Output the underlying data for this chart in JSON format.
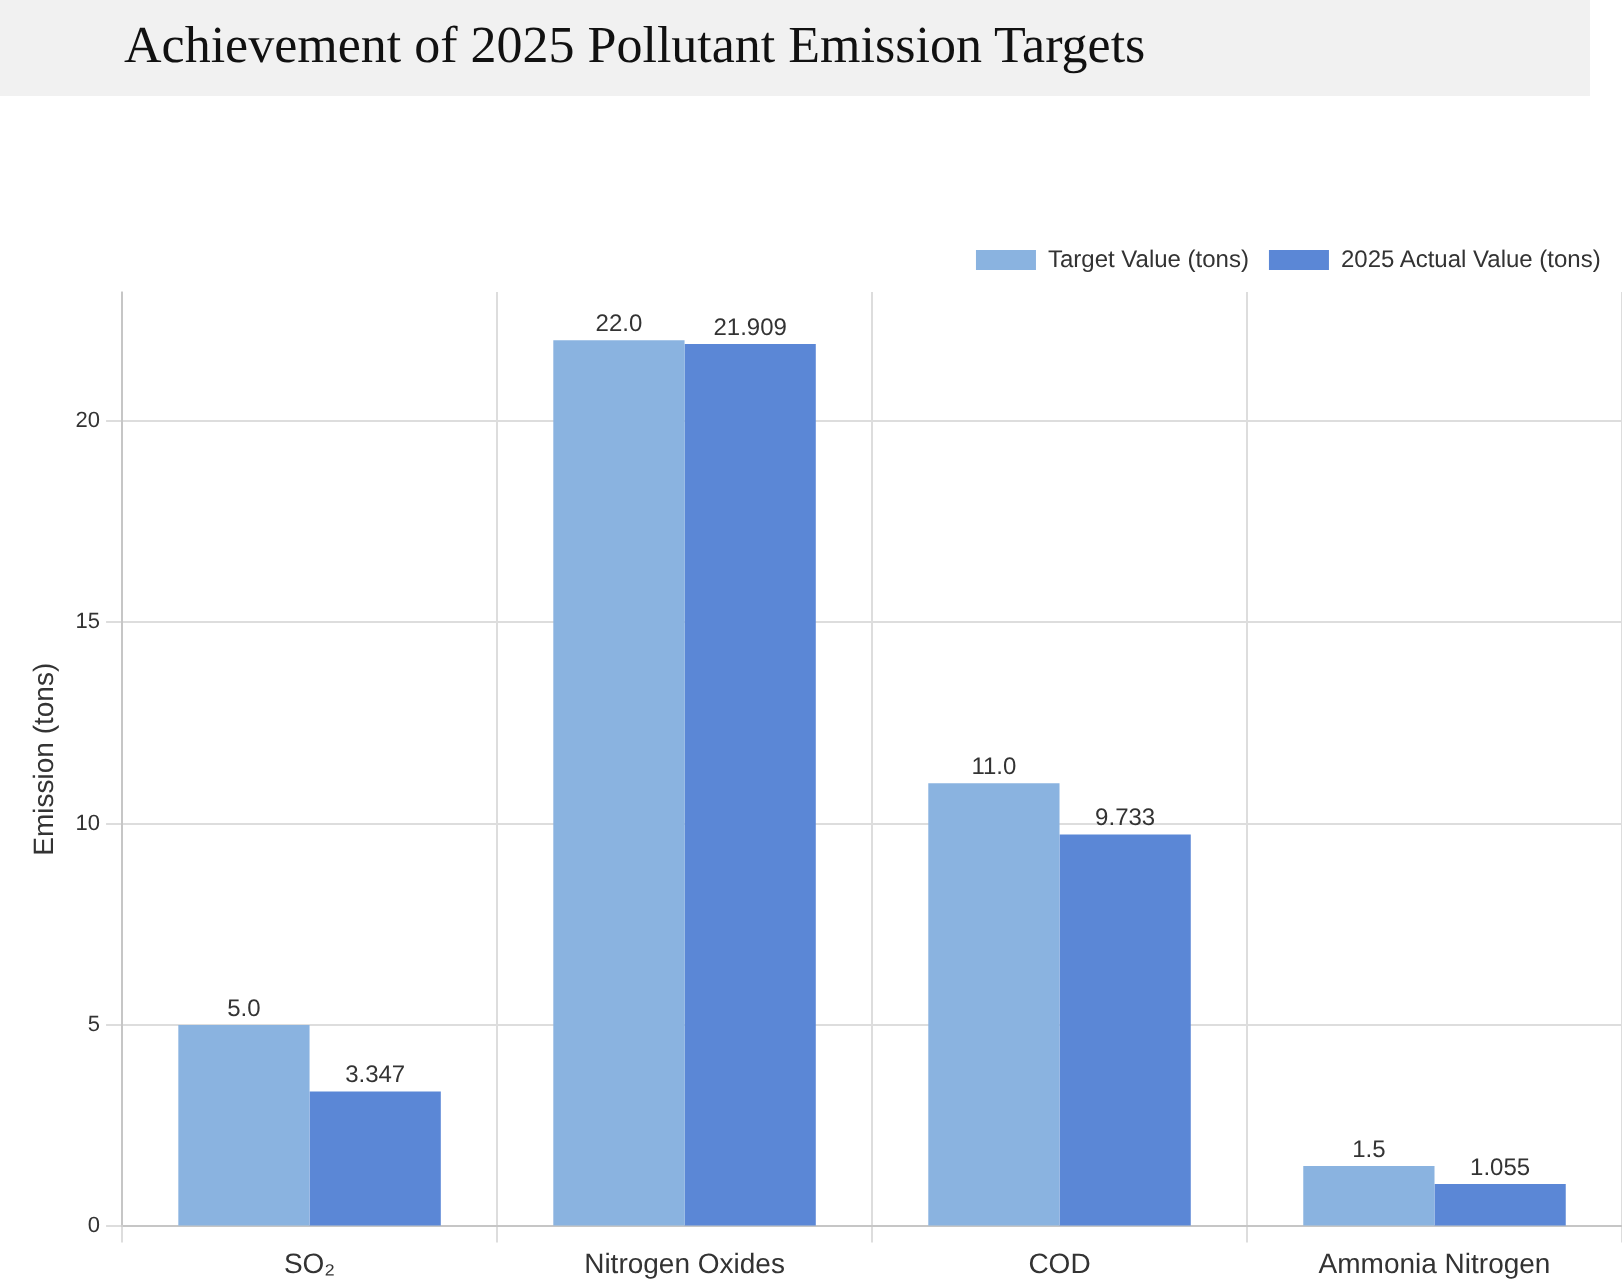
{
  "chart_data": {
    "type": "bar",
    "title": "Achievement of 2025 Pollutant Emission Targets",
    "ylabel": "Emission (tons)",
    "categories": [
      "SO₂",
      "Nitrogen Oxides",
      "COD",
      "Ammonia Nitrogen"
    ],
    "series": [
      {
        "name": "Target Value (tons)",
        "color": "#8ab3e0",
        "values": [
          5.0,
          22.0,
          11.0,
          1.5
        ],
        "value_labels": [
          "5.0",
          "22.0",
          "11.0",
          "1.5"
        ]
      },
      {
        "name": "2025 Actual Value (tons)",
        "color": "#5b87d6",
        "values": [
          3.347,
          21.909,
          9.733,
          1.055
        ],
        "value_labels": [
          "3.347",
          "21.909",
          "9.733",
          "1.055"
        ]
      }
    ],
    "ylim": [
      0,
      23.2
    ],
    "yticks": [
      0,
      5,
      10,
      15,
      20
    ],
    "grid": true,
    "legend": "top right"
  }
}
